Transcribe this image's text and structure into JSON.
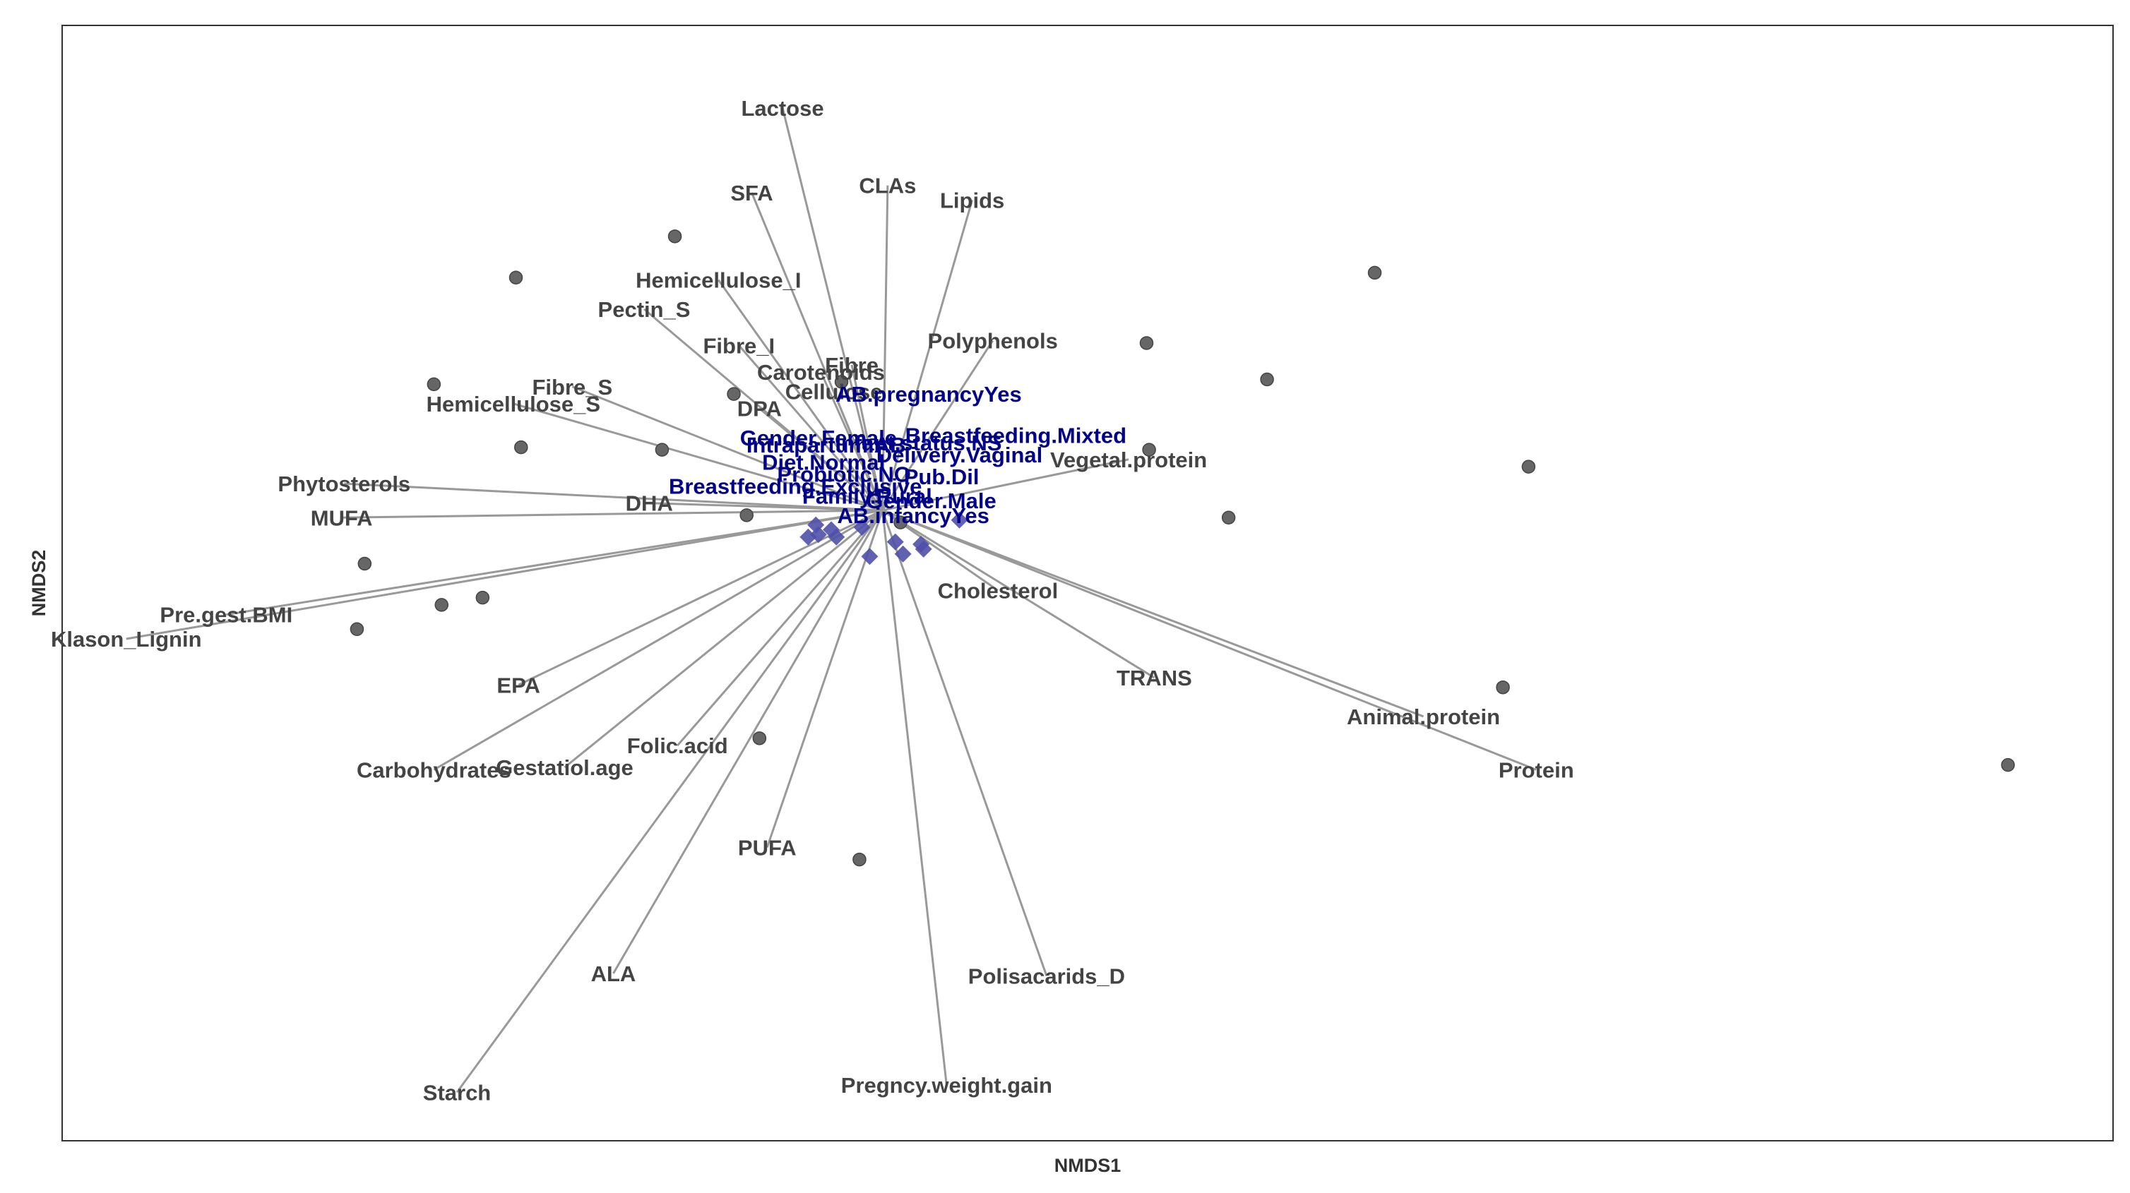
{
  "chart_data": {
    "type": "scatter",
    "title": "",
    "xlabel": "NMDS1",
    "ylabel": "NMDS2",
    "xlim": [
      -3.2,
      4.8
    ],
    "ylim": [
      -2.6,
      2.0
    ],
    "grid": false,
    "legend": "none",
    "origin": [
      0.0,
      0.0
    ],
    "colors": {
      "vector": "#999999",
      "vector_label": "#444444",
      "factor_label": "#00008B",
      "factor_point": "#5050A8",
      "site_point": "#666666",
      "border": "#333333"
    },
    "sites": {
      "name": "samples",
      "x": [
        -0.81,
        -1.43,
        -0.58,
        -1.75,
        1.92,
        1.03,
        1.5,
        1.04,
        2.52,
        1.35,
        -0.53,
        -2.02,
        -2.05,
        -1.72,
        -1.56,
        -0.86,
        -1.41,
        2.42,
        4.39,
        -0.09,
        0.07,
        -0.48,
        -0.16
      ],
      "y": [
        1.13,
        0.96,
        0.48,
        0.52,
        0.98,
        0.69,
        0.54,
        0.25,
        0.18,
        -0.03,
        -0.02,
        -0.22,
        -0.49,
        -0.39,
        -0.36,
        0.25,
        0.26,
        -0.73,
        -1.05,
        -1.44,
        -0.05,
        -0.94,
        0.53
      ]
    },
    "vectors": [
      {
        "label": "Lactose",
        "x": -0.39,
        "y": 1.66
      },
      {
        "label": "SFA",
        "x": -0.51,
        "y": 1.31
      },
      {
        "label": "CLAs",
        "x": 0.02,
        "y": 1.34
      },
      {
        "label": "Lipids",
        "x": 0.35,
        "y": 1.28
      },
      {
        "label": "Hemicellulose_I",
        "x": -0.64,
        "y": 0.95
      },
      {
        "label": "Pectin_S",
        "x": -0.93,
        "y": 0.83
      },
      {
        "label": "Polyphenols",
        "x": 0.43,
        "y": 0.7
      },
      {
        "label": "Fibre_I",
        "x": -0.56,
        "y": 0.68
      },
      {
        "label": "Fibre",
        "x": -0.12,
        "y": 0.6
      },
      {
        "label": "Carotenoids",
        "x": -0.24,
        "y": 0.57
      },
      {
        "label": "Cellulose",
        "x": -0.19,
        "y": 0.49
      },
      {
        "label": "Fibre_S",
        "x": -1.21,
        "y": 0.51
      },
      {
        "label": "Hemicellulose_S",
        "x": -1.44,
        "y": 0.44
      },
      {
        "label": "DPA",
        "x": -0.48,
        "y": 0.42
      },
      {
        "label": "Vegetal.protein",
        "x": 0.96,
        "y": 0.21
      },
      {
        "label": "Phytosterols",
        "x": -2.1,
        "y": 0.11
      },
      {
        "label": "DHA",
        "x": -0.91,
        "y": 0.03
      },
      {
        "label": "MUFA",
        "x": -2.11,
        "y": -0.03
      },
      {
        "label": "Cholesterol",
        "x": 0.45,
        "y": -0.33
      },
      {
        "label": "Pre.gest.BMI",
        "x": -2.56,
        "y": -0.43
      },
      {
        "label": "Klason_Lignin",
        "x": -2.95,
        "y": -0.53
      },
      {
        "label": "TRANS",
        "x": 1.06,
        "y": -0.69
      },
      {
        "label": "EPA",
        "x": -1.42,
        "y": -0.72
      },
      {
        "label": "Animal.protein",
        "x": 2.11,
        "y": -0.85
      },
      {
        "label": "Folic.acid",
        "x": -0.8,
        "y": -0.97
      },
      {
        "label": "Carbohydrates",
        "x": -1.75,
        "y": -1.07
      },
      {
        "label": "Gestatiol.age",
        "x": -1.24,
        "y": -1.06
      },
      {
        "label": "Protein",
        "x": 2.55,
        "y": -1.07
      },
      {
        "label": "PUFA",
        "x": -0.45,
        "y": -1.39
      },
      {
        "label": "ALA",
        "x": -1.05,
        "y": -1.91
      },
      {
        "label": "Polisacarids_D",
        "x": 0.64,
        "y": -1.92
      },
      {
        "label": "Starch",
        "x": -1.66,
        "y": -2.4
      },
      {
        "label": "Pregncy.weight.gain",
        "x": 0.25,
        "y": -2.37
      }
    ],
    "factors": [
      {
        "label": "AB.pregnancyYes",
        "x": 0.18,
        "y": 0.48
      },
      {
        "label": "Breastfeeding.Mixted",
        "x": 0.52,
        "y": 0.31
      },
      {
        "label": "Gender.Female",
        "x": -0.25,
        "y": 0.3
      },
      {
        "label": "Infant.status.NS",
        "x": 0.14,
        "y": 0.28
      },
      {
        "label": "Intrapartum.AB",
        "x": -0.22,
        "y": 0.27
      },
      {
        "label": "Delivery.Vaginal",
        "x": 0.3,
        "y": 0.23
      },
      {
        "label": "Diet.Normal",
        "x": -0.23,
        "y": 0.2
      },
      {
        "label": "Probiotic.NO",
        "x": -0.15,
        "y": 0.15
      },
      {
        "label": "Pub.Dil",
        "x": 0.23,
        "y": 0.14
      },
      {
        "label": "Breastfeeding.Exclusive",
        "x": -0.34,
        "y": 0.1
      },
      {
        "label": "Family.Rural",
        "x": -0.06,
        "y": 0.06
      },
      {
        "label": "Gender.Male",
        "x": 0.19,
        "y": 0.04
      },
      {
        "label": "AB.infancyYes",
        "x": 0.12,
        "y": -0.02
      }
    ],
    "factor_points": {
      "x": [
        -0.25,
        -0.18,
        -0.05,
        0.05,
        0.08,
        0.15,
        0.3,
        0.16,
        -0.2,
        -0.29,
        -0.26,
        -0.08
      ],
      "y": [
        -0.1,
        -0.11,
        -0.19,
        -0.13,
        -0.18,
        -0.14,
        -0.04,
        -0.16,
        -0.08,
        -0.11,
        -0.06,
        -0.07
      ]
    }
  }
}
